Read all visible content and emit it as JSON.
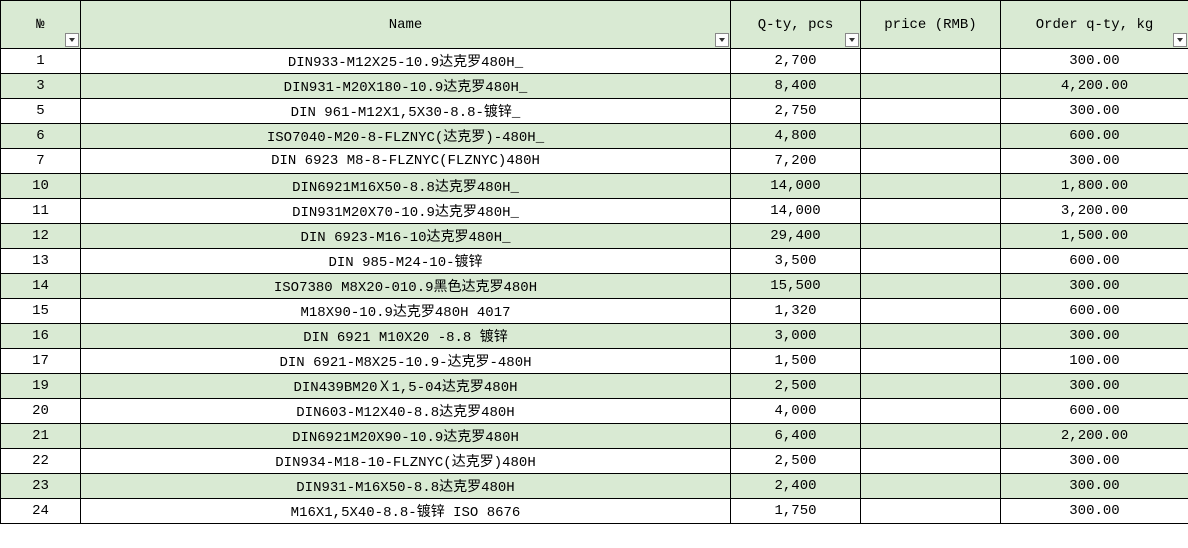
{
  "table": {
    "columns": [
      {
        "key": "num",
        "label": "№",
        "class": "col-num",
        "has_filter": true
      },
      {
        "key": "name",
        "label": "Name",
        "class": "col-name",
        "has_filter": true
      },
      {
        "key": "qty",
        "label": "Q-ty, pcs",
        "class": "col-qty",
        "has_filter": true
      },
      {
        "key": "price",
        "label": "price (RMB)",
        "class": "col-price",
        "has_filter": false
      },
      {
        "key": "order",
        "label": "Order q-ty, kg",
        "class": "col-order",
        "has_filter": true
      }
    ],
    "rows": [
      {
        "num": "1",
        "name": "DIN933-M12X25-10.9达克罗480H_",
        "qty": "2,700",
        "price": "",
        "order": "300.00"
      },
      {
        "num": "3",
        "name": "DIN931-M20X180-10.9达克罗480H_",
        "qty": "8,400",
        "price": "",
        "order": "4,200.00"
      },
      {
        "num": "5",
        "name": "DIN 961-M12X1,5X30-8.8-镀锌_",
        "qty": "2,750",
        "price": "",
        "order": "300.00"
      },
      {
        "num": "6",
        "name": "ISO7040-M20-8-FLZNYC(达克罗)-480H_",
        "qty": "4,800",
        "price": "",
        "order": "600.00"
      },
      {
        "num": "7",
        "name": "DIN 6923 M8-8-FLZNYC(FLZNYC)480H",
        "qty": "7,200",
        "price": "",
        "order": "300.00"
      },
      {
        "num": "10",
        "name": "DIN6921M16X50-8.8达克罗480H_",
        "qty": "14,000",
        "price": "",
        "order": "1,800.00"
      },
      {
        "num": "11",
        "name": "DIN931M20X70-10.9达克罗480H_",
        "qty": "14,000",
        "price": "",
        "order": "3,200.00"
      },
      {
        "num": "12",
        "name": "DIN 6923-M16-10达克罗480H_",
        "qty": "29,400",
        "price": "",
        "order": "1,500.00"
      },
      {
        "num": "13",
        "name": "DIN 985-M24-10-镀锌",
        "qty": "3,500",
        "price": "",
        "order": "600.00"
      },
      {
        "num": "14",
        "name": "ISO7380 M8X20-010.9黑色达克罗480H",
        "qty": "15,500",
        "price": "",
        "order": "300.00"
      },
      {
        "num": "15",
        "name": "M18X90-10.9达克罗480H 4017",
        "qty": "1,320",
        "price": "",
        "order": "600.00"
      },
      {
        "num": "16",
        "name": "DIN 6921 M10X20 -8.8 镀锌",
        "qty": "3,000",
        "price": "",
        "order": "300.00"
      },
      {
        "num": "17",
        "name": "DIN 6921-M8X25-10.9-达克罗-480H",
        "qty": "1,500",
        "price": "",
        "order": "100.00"
      },
      {
        "num": "19",
        "name": "DIN439BM20Ｘ1,5-04达克罗480H",
        "qty": "2,500",
        "price": "",
        "order": "300.00"
      },
      {
        "num": "20",
        "name": "DIN603-M12X40-8.8达克罗480H",
        "qty": "4,000",
        "price": "",
        "order": "600.00"
      },
      {
        "num": "21",
        "name": "DIN6921M20X90-10.9达克罗480H",
        "qty": "6,400",
        "price": "",
        "order": "2,200.00"
      },
      {
        "num": "22",
        "name": "DIN934-M18-10-FLZNYC(达克罗)480H",
        "qty": "2,500",
        "price": "",
        "order": "300.00"
      },
      {
        "num": "23",
        "name": "DIN931-M16X50-8.8达克罗480H",
        "qty": "2,400",
        "price": "",
        "order": "300.00"
      },
      {
        "num": "24",
        "name": "M16X1,5X40-8.8-镀锌 ISO 8676",
        "qty": "1,750",
        "price": "",
        "order": "300.00"
      }
    ],
    "header_bg": "#d9ead3",
    "even_row_bg": "#d9ead3",
    "odd_row_bg": "#ffffff",
    "border_color": "#000000",
    "font_family": "SimSun",
    "font_size": 14
  }
}
